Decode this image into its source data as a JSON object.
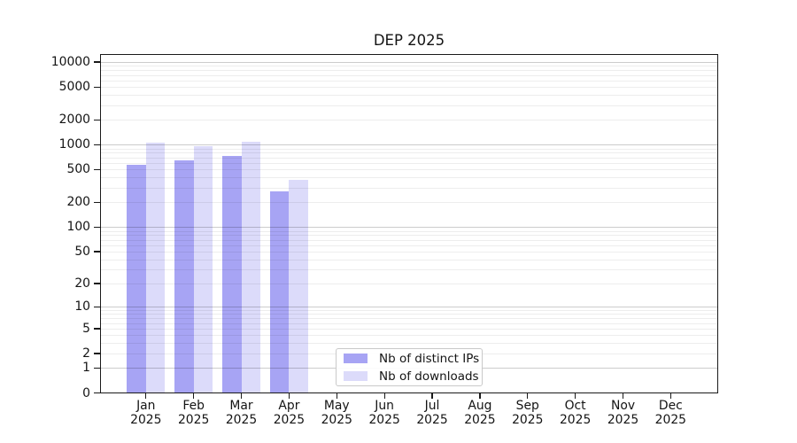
{
  "chart_data": {
    "type": "bar",
    "title": "DEP 2025",
    "categories": [
      "Jan 2025",
      "Feb 2025",
      "Mar 2025",
      "Apr 2025",
      "May 2025",
      "Jun 2025",
      "Jul 2025",
      "Aug 2025",
      "Sep 2025",
      "Oct 2025",
      "Nov 2025",
      "Dec 2025"
    ],
    "series": [
      {
        "name": "Nb of distinct IPs",
        "color": "#a7a4f4",
        "values": [
          570,
          640,
          730,
          270,
          0,
          0,
          0,
          0,
          0,
          0,
          0,
          0
        ]
      },
      {
        "name": "Nb of downloads",
        "color": "#dcdbfa",
        "values": [
          1050,
          960,
          1100,
          380,
          0,
          0,
          0,
          0,
          0,
          0,
          0,
          0
        ]
      }
    ],
    "yscale": "log(value+1)",
    "y_tick_labels": [
      "10000",
      "5000",
      "2000",
      "1000",
      "500",
      "200",
      "100",
      "50",
      "20",
      "10",
      "5",
      "2",
      "1",
      "0"
    ],
    "y_tick_values": [
      10000,
      5000,
      2000,
      1000,
      500,
      200,
      100,
      50,
      20,
      10,
      5,
      2,
      1,
      0
    ],
    "ylim": [
      0,
      12500
    ],
    "xlabel": "",
    "ylabel": "",
    "grid": "horizontal major+minor",
    "legend_position": "lower center inside"
  }
}
